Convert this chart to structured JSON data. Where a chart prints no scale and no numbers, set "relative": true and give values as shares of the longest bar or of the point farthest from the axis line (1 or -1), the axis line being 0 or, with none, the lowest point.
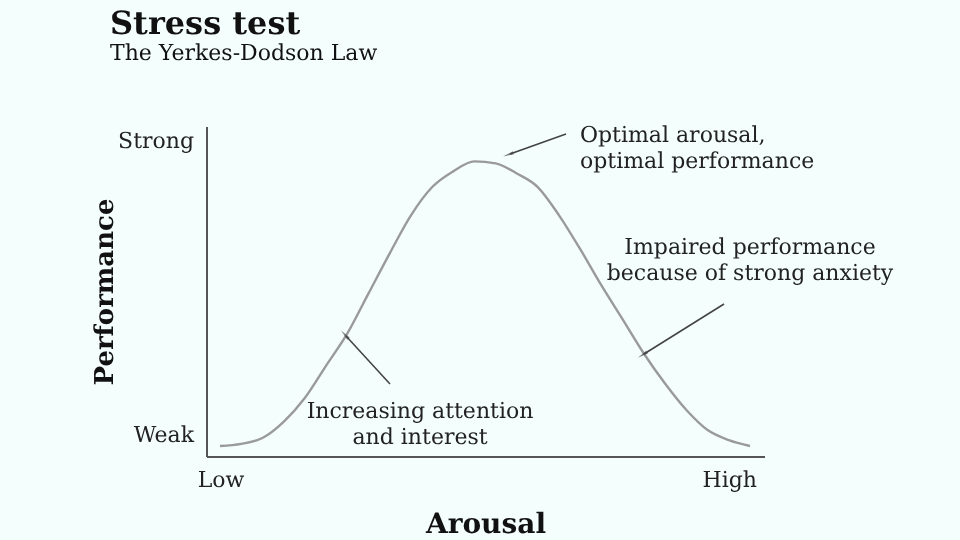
{
  "chart_data": {
    "type": "line",
    "title": "Stress test",
    "subtitle": "The Yerkes-Dodson Law",
    "xlabel": "Arousal",
    "ylabel": "Performance",
    "relative": true,
    "categories": [
      "Low",
      null,
      null,
      null,
      null,
      null,
      null,
      null,
      null,
      null,
      null,
      null,
      null,
      null,
      null,
      null,
      null,
      null,
      null,
      null,
      null,
      null,
      null,
      null,
      "High",
      null
    ],
    "marker": "none",
    "line_style": "solid",
    "series": [
      {
        "color": "#9a9a9a",
        "values": [
          0.034,
          0.041,
          0.061,
          0.116,
          0.197,
          0.306,
          0.415,
          0.551,
          0.687,
          0.816,
          0.912,
          0.966,
          1.0,
          0.993,
          0.959,
          0.912,
          0.816,
          0.701,
          0.578,
          0.463,
          0.347,
          0.245,
          0.156,
          0.088,
          0.054,
          0.034
        ]
      }
    ],
    "annotations": [
      "Strong",
      "Weak",
      "Increasing attention\nand interest",
      "Optimal arousal,\noptimal performance",
      "Impaired performance\nbecause of strong anxiety"
    ]
  }
}
